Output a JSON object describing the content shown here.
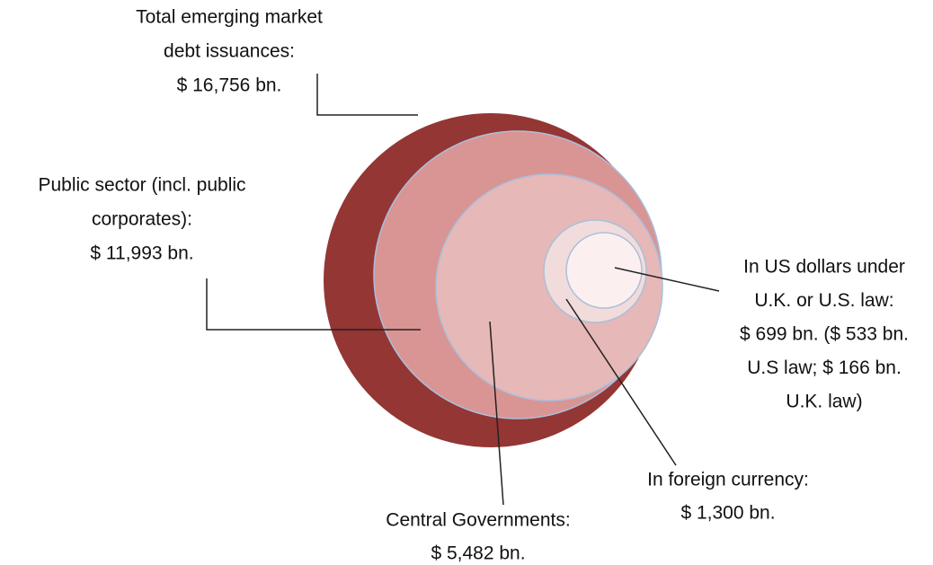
{
  "labels": [
    {
      "lines": [
        "Total emerging market",
        "debt issuances:",
        "$ 16,756 bn."
      ]
    },
    {
      "lines": [
        "Public sector (incl. public",
        "corporates):",
        "$ 11,993 bn."
      ]
    },
    {
      "lines": [
        "Central Governments:",
        "$ 5,482 bn."
      ]
    },
    {
      "lines": [
        "In foreign currency:",
        "$ 1,300 bn."
      ]
    },
    {
      "lines": [
        "In US dollars under",
        "U.K. or U.S. law:",
        "$ 699 bn. ($ 533 bn.",
        "U.S law; $ 166 bn.",
        "U.K. law)"
      ]
    }
  ]
}
